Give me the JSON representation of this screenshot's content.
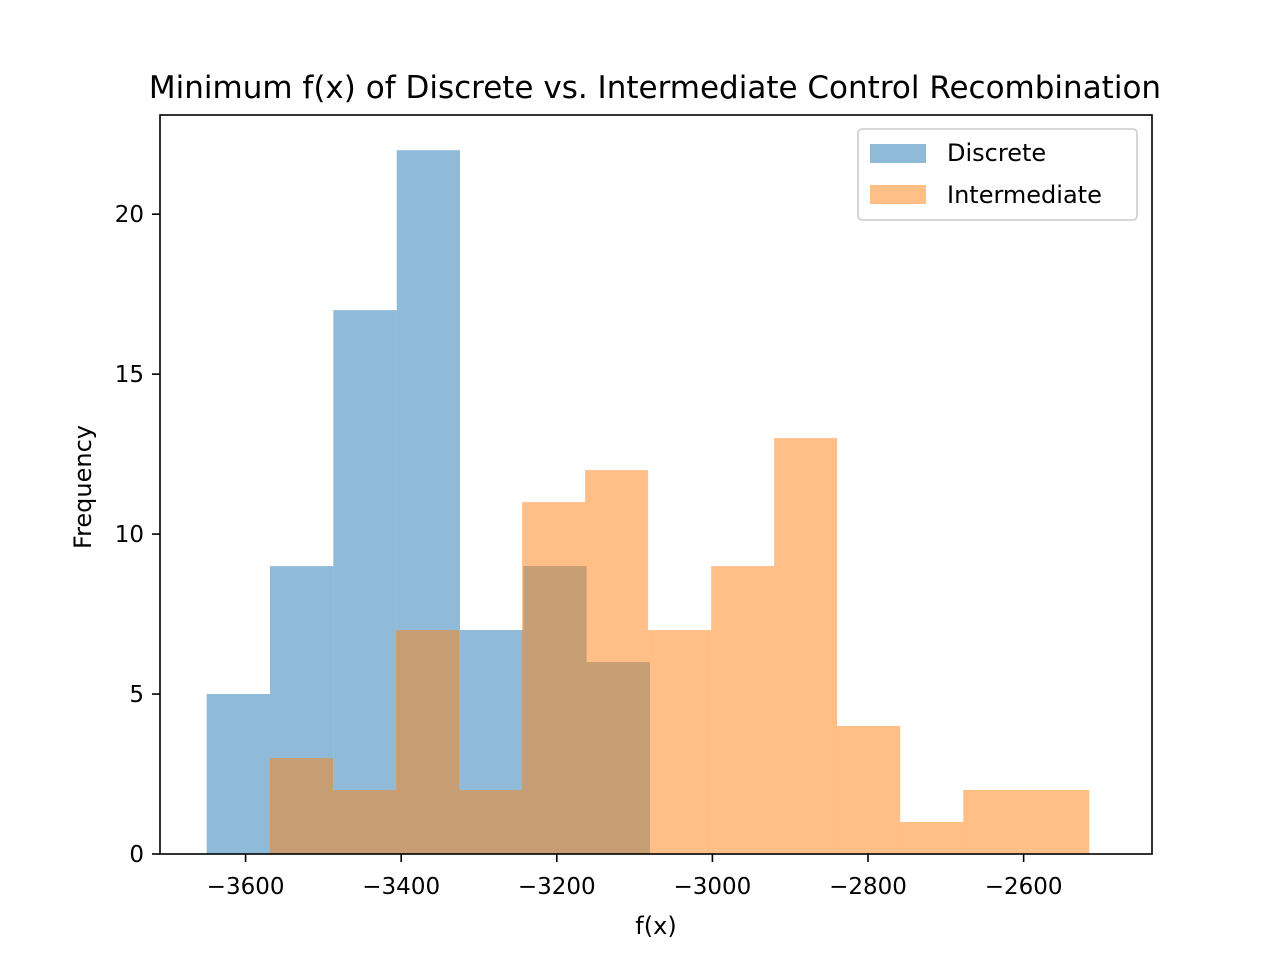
{
  "chart_data": {
    "type": "bar",
    "title": "Minimum f(x) of Discrete vs. Intermediate Control Recombination",
    "xlabel": "f(x)",
    "ylabel": "Frequency",
    "xlim": [
      -3710,
      -2435
    ],
    "ylim": [
      0,
      23.1
    ],
    "grid": false,
    "legend_position": "top-right",
    "x_ticks": [
      -3600,
      -3400,
      -3200,
      -3000,
      -2800,
      -2600
    ],
    "x_tick_labels": [
      "−3600",
      "−3400",
      "−3200",
      "−3000",
      "−2800",
      "−2600"
    ],
    "y_ticks": [
      0,
      5,
      10,
      15,
      20
    ],
    "y_tick_labels": [
      "0",
      "5",
      "10",
      "15",
      "20"
    ],
    "series": [
      {
        "name": "Discrete",
        "color": "#1f77b4",
        "opacity": 0.5,
        "bin_edges": [
          -3650,
          -3568.6,
          -3487.2,
          -3405.8,
          -3324.4,
          -3243,
          -3161.6,
          -3080.2
        ],
        "values": [
          5,
          9,
          17,
          22,
          7,
          9,
          6
        ]
      },
      {
        "name": "Intermediate",
        "color": "#ff7f0e",
        "opacity": 0.5,
        "bin_edges": [
          -3568.6,
          -3487.6,
          -3406.6,
          -3325.6,
          -3244.6,
          -3163.6,
          -3082.6,
          -3001.6,
          -2920.6,
          -2839.6,
          -2758.6,
          -2677.6,
          -2596.6,
          -2515.6
        ],
        "values": [
          3,
          2,
          7,
          2,
          11,
          12,
          7,
          9,
          13,
          4,
          1,
          2,
          2
        ]
      }
    ]
  }
}
